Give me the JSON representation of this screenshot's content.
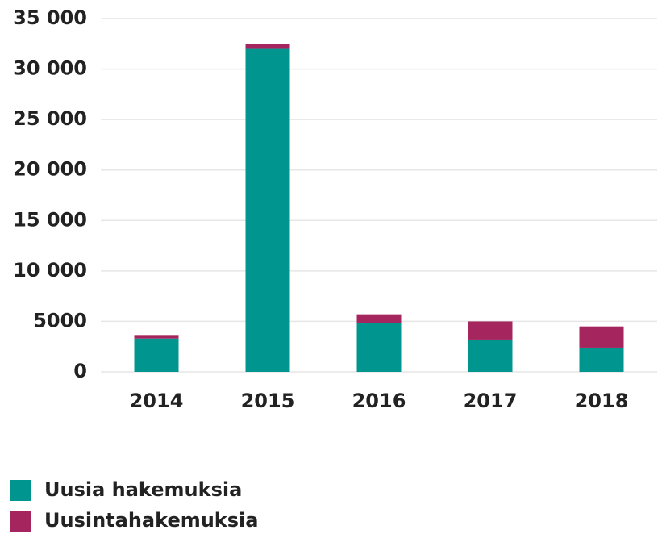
{
  "chart_data": {
    "type": "stacked_bar",
    "categories": [
      "2014",
      "2015",
      "2016",
      "2017",
      "2018"
    ],
    "series": [
      {
        "name": "Uusia hakemuksia",
        "color": "#00968f",
        "values": [
          3300,
          32000,
          4800,
          3200,
          2400
        ]
      },
      {
        "name": "Uusintahakemuksia",
        "color": "#a5265e",
        "values": [
          350,
          500,
          900,
          1800,
          2100
        ]
      }
    ],
    "ylim": [
      0,
      35000
    ],
    "yticks": [
      0,
      5000,
      {
        "value": 10000,
        "label": "10 000"
      },
      {
        "value": 15000,
        "label": "15 000"
      },
      {
        "value": 20000,
        "label": "20 000"
      },
      {
        "value": 25000,
        "label": "25 000"
      },
      {
        "value": 30000,
        "label": "30 000"
      },
      {
        "value": 35000,
        "label": "35 000"
      }
    ],
    "grid": true,
    "legend": "bottom-left"
  }
}
